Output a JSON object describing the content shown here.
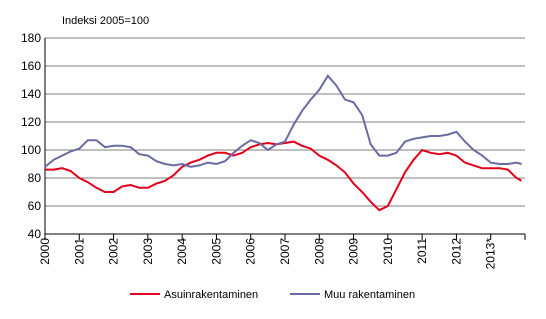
{
  "chart_data": {
    "type": "line",
    "y_label": "Indeksi 2005=100",
    "x": [
      2000,
      2000.25,
      2000.5,
      2000.75,
      2001,
      2001.25,
      2001.5,
      2001.75,
      2002,
      2002.25,
      2002.5,
      2002.75,
      2003,
      2003.25,
      2003.5,
      2003.75,
      2004,
      2004.25,
      2004.5,
      2004.75,
      2005,
      2005.25,
      2005.5,
      2005.75,
      2006,
      2006.25,
      2006.5,
      2006.75,
      2007,
      2007.25,
      2007.5,
      2007.75,
      2008,
      2008.25,
      2008.5,
      2008.75,
      2009,
      2009.25,
      2009.5,
      2009.75,
      2010,
      2010.25,
      2010.5,
      2010.75,
      2011,
      2011.25,
      2011.5,
      2011.75,
      2012,
      2012.25,
      2012.5,
      2012.75,
      2013,
      2013.25,
      2013.5,
      2013.75,
      2013.9
    ],
    "series": [
      {
        "name": "Asuinrakentaminen",
        "color": "#e2001a",
        "values": [
          86,
          86,
          87,
          85,
          80,
          77,
          73,
          70,
          70,
          74,
          75,
          73,
          73,
          76,
          78,
          82,
          88,
          91,
          93,
          96,
          98,
          98,
          96,
          98,
          102,
          104,
          105,
          104,
          105,
          106,
          103,
          101,
          96,
          93,
          89,
          84,
          76,
          70,
          63,
          57,
          60,
          72,
          84,
          93,
          100,
          98,
          97,
          98,
          96,
          91,
          89,
          87,
          87,
          87,
          86,
          80,
          78
        ]
      },
      {
        "name": "Muu rakentaminen",
        "color": "#6b6ba3",
        "values": [
          88,
          93,
          96,
          99,
          101,
          107,
          107,
          102,
          103,
          103,
          102,
          97,
          96,
          92,
          90,
          89,
          90,
          88,
          89,
          91,
          90,
          92,
          98,
          103,
          107,
          105,
          100,
          104,
          106,
          118,
          128,
          136,
          143,
          153,
          146,
          136,
          134,
          125,
          104,
          96,
          96,
          98,
          106,
          108,
          109,
          110,
          110,
          111,
          113,
          106,
          100,
          96,
          91,
          90,
          90,
          91,
          90
        ]
      }
    ],
    "xlim": [
      2000,
      2014
    ],
    "xticks": [
      2000,
      2001,
      2002,
      2003,
      2004,
      2005,
      2006,
      2007,
      2008,
      2009,
      2010,
      2011,
      2012,
      {
        "value": 2013,
        "label": "2013*"
      }
    ],
    "ylim": [
      40,
      180
    ],
    "yticks": [
      40,
      60,
      80,
      100,
      120,
      140,
      160,
      180
    ],
    "grid": true,
    "legend": "bottom"
  }
}
